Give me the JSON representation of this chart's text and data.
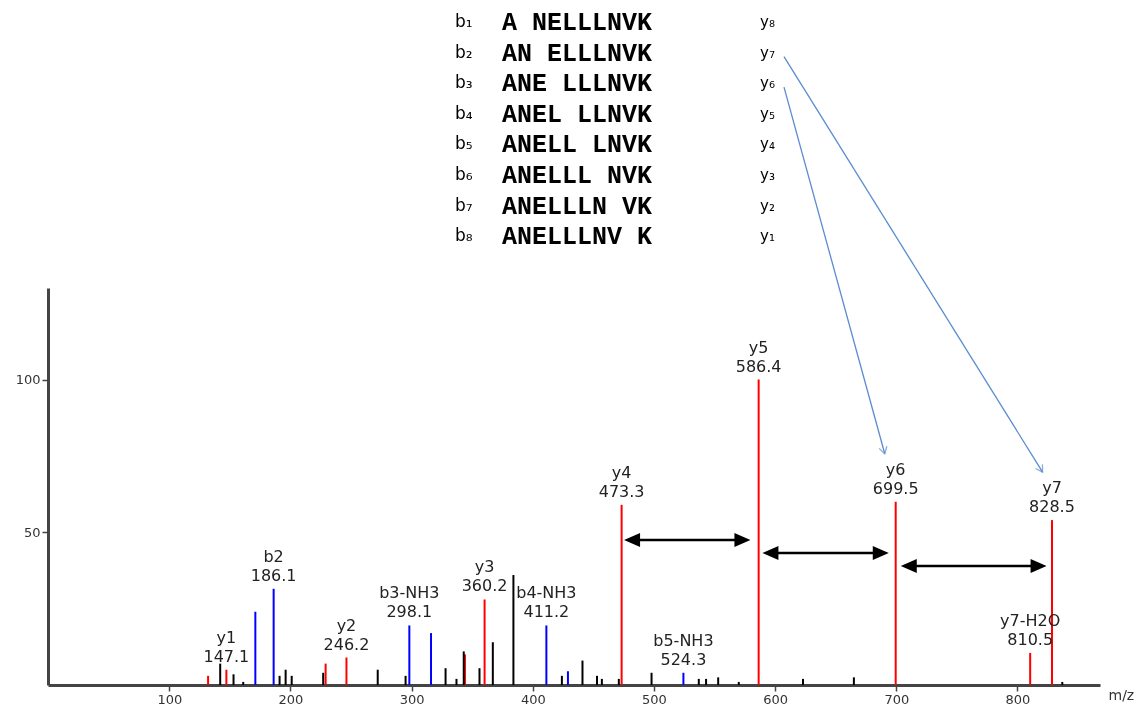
{
  "chart_data": {
    "type": "bar",
    "xlabel": "m/z",
    "xlim": [
      4,
      864
    ],
    "ylim": [
      0,
      130
    ],
    "xticks": [
      100,
      200,
      300,
      400,
      500,
      600,
      700,
      800
    ],
    "yticks": [
      50,
      100
    ],
    "grid": false,
    "series": [
      {
        "color": "#ff0000",
        "x": [
          132,
          147.1,
          229,
          246.2,
          344,
          360.2,
          473.3,
          586.4,
          699.5,
          810.5,
          828.5
        ],
        "values": [
          3,
          5,
          7,
          9,
          10,
          28,
          59,
          100,
          60,
          10.5,
          54
        ]
      },
      {
        "color": "#0000ff",
        "x": [
          171,
          186.1,
          298.1,
          316,
          411.2,
          429,
          524.3
        ],
        "values": [
          24,
          31.5,
          19.5,
          17,
          19.5,
          4.5,
          4
        ]
      },
      {
        "color": "#000000",
        "x": [
          142,
          153,
          161,
          191,
          196,
          201,
          227,
          272,
          295,
          328,
          337,
          343,
          356,
          367,
          384,
          424,
          441,
          453,
          457,
          471,
          498,
          537,
          543,
          553,
          570,
          623,
          665,
          837
        ],
        "values": [
          7,
          3.5,
          1,
          3,
          5,
          3,
          4,
          5,
          3,
          5.5,
          2,
          11,
          5.5,
          14,
          36,
          3,
          8,
          3,
          2,
          2,
          4,
          2,
          2,
          2.5,
          1,
          2,
          2.5,
          1
        ]
      }
    ],
    "annotations": [
      "b₁",
      "A NELLLNVK",
      "y₈",
      "b₂",
      "AN ELLLNVK",
      "y₇",
      "b₃",
      "ANE LLLNVK",
      "y₆",
      "b₄",
      "ANEL LLNVK",
      "y₅",
      "b₅",
      "ANELL LNVK",
      "y₄",
      "b₆",
      "ANELLL NVK",
      "y₃",
      "b₇",
      "ANELLLN VK",
      "y₂",
      "b₈",
      "ANELLLNV K",
      "y₁",
      {
        "text": "y1\n147.1",
        "x": 147.1,
        "y": 5
      },
      {
        "text": "b2\n186.1",
        "x": 186.1,
        "y": 31.5
      },
      {
        "text": "y2\n246.2",
        "x": 246.2,
        "y": 9
      },
      {
        "text": "b3-NH3\n298.1",
        "x": 298.1,
        "y": 19.5
      },
      {
        "text": "y3\n360.2",
        "x": 360.2,
        "y": 28
      },
      {
        "text": "b4-NH3\n411.2",
        "x": 411.2,
        "y": 19.5
      },
      {
        "text": "y4\n473.3",
        "x": 473.3,
        "y": 59
      },
      {
        "text": "b5-NH3\n524.3",
        "x": 524.3,
        "y": 4
      },
      {
        "text": "y5\n586.4",
        "x": 586.4,
        "y": 100
      },
      {
        "text": "y6\n699.5",
        "x": 699.5,
        "y": 60
      },
      {
        "text": "y7-H2O\n810.5",
        "x": 810.5,
        "y": 10.5
      },
      {
        "text": "y7\n828.5",
        "x": 828.5,
        "y": 54
      }
    ]
  }
}
